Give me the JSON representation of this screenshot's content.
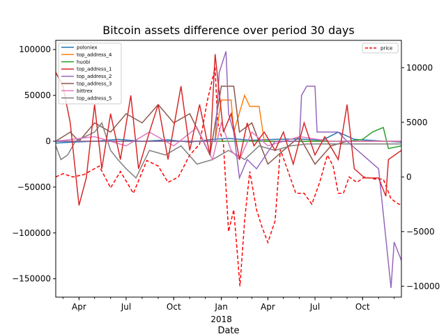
{
  "chart_data": {
    "type": "line",
    "title": "Bitcoin assets difference over period 30 days",
    "xlabel": "Date",
    "ylabel": "",
    "y2label": "",
    "x_range": [
      "2017-02-15",
      "2018-12-15"
    ],
    "ylim": [
      -170000,
      110000
    ],
    "y2lim": [
      -11000,
      12500
    ],
    "x_ticks": [
      {
        "date": "2017-04-01",
        "label": "Apr"
      },
      {
        "date": "2017-07-01",
        "label": "Jul"
      },
      {
        "date": "2017-10-01",
        "label": "Oct"
      },
      {
        "date": "2018-01-01",
        "label": "Jan",
        "sublabel": "2018"
      },
      {
        "date": "2018-04-01",
        "label": "Apr"
      },
      {
        "date": "2018-07-01",
        "label": "Jul"
      },
      {
        "date": "2018-10-01",
        "label": "Oct"
      }
    ],
    "y_ticks": [
      100000,
      50000,
      0,
      -50000,
      -100000,
      -150000
    ],
    "y2_ticks": [
      10000,
      5000,
      0,
      -5000,
      -10000
    ],
    "grid": false,
    "legend_left": {
      "placement": "top-left",
      "entries": [
        "poloniex",
        "top_address_4",
        "huobi",
        "top_address_1",
        "top_address_2",
        "top_address_3",
        "bittrex",
        "top_address_5"
      ]
    },
    "legend_right": {
      "placement": "top-right",
      "entries": [
        "price"
      ]
    },
    "series": [
      {
        "name": "poloniex",
        "axis": "left",
        "color": "#1f77b4",
        "points": [
          [
            "2017-02-15",
            -2000
          ],
          [
            "2017-03-20",
            -1000
          ],
          [
            "2017-05-01",
            0
          ],
          [
            "2017-06-15",
            2000
          ],
          [
            "2017-08-01",
            0
          ],
          [
            "2017-09-20",
            1500
          ],
          [
            "2017-11-01",
            -1000
          ],
          [
            "2017-12-15",
            2000
          ],
          [
            "2018-01-15",
            3000
          ],
          [
            "2018-03-01",
            1000
          ],
          [
            "2018-04-15",
            2000
          ],
          [
            "2018-06-01",
            2500
          ],
          [
            "2018-07-15",
            1000
          ],
          [
            "2018-08-15",
            10000
          ],
          [
            "2018-09-15",
            2000
          ],
          [
            "2018-10-15",
            1000
          ],
          [
            "2018-11-15",
            0
          ],
          [
            "2018-12-15",
            -1000
          ]
        ]
      },
      {
        "name": "top_address_4",
        "axis": "left",
        "color": "#ff7f0e",
        "points": [
          [
            "2017-02-15",
            0
          ],
          [
            "2017-12-20",
            0
          ],
          [
            "2018-01-01",
            45000
          ],
          [
            "2018-01-20",
            45000
          ],
          [
            "2018-01-25",
            10000
          ],
          [
            "2018-02-15",
            50000
          ],
          [
            "2018-02-25",
            38000
          ],
          [
            "2018-03-15",
            38000
          ],
          [
            "2018-03-25",
            0
          ],
          [
            "2018-12-15",
            0
          ]
        ]
      },
      {
        "name": "huobi",
        "axis": "left",
        "color": "#2ca02c",
        "points": [
          [
            "2017-02-15",
            0
          ],
          [
            "2018-09-01",
            0
          ],
          [
            "2018-10-01",
            2000
          ],
          [
            "2018-10-20",
            10000
          ],
          [
            "2018-11-10",
            15000
          ],
          [
            "2018-11-20",
            -8000
          ],
          [
            "2018-12-15",
            -5000
          ]
        ]
      },
      {
        "name": "top_address_1",
        "axis": "left",
        "color": "#d62728",
        "points": [
          [
            "2017-02-15",
            75000
          ],
          [
            "2017-03-01",
            60000
          ],
          [
            "2017-03-15",
            20000
          ],
          [
            "2017-04-01",
            -70000
          ],
          [
            "2017-04-15",
            -40000
          ],
          [
            "2017-05-01",
            40000
          ],
          [
            "2017-05-15",
            -30000
          ],
          [
            "2017-06-01",
            30000
          ],
          [
            "2017-06-20",
            -20000
          ],
          [
            "2017-07-10",
            50000
          ],
          [
            "2017-07-25",
            -30000
          ],
          [
            "2017-08-15",
            10000
          ],
          [
            "2017-09-01",
            40000
          ],
          [
            "2017-09-20",
            -20000
          ],
          [
            "2017-10-15",
            60000
          ],
          [
            "2017-11-01",
            -10000
          ],
          [
            "2017-11-20",
            40000
          ],
          [
            "2017-12-10",
            -15000
          ],
          [
            "2017-12-20",
            95000
          ],
          [
            "2018-01-05",
            10000
          ],
          [
            "2018-01-20",
            30000
          ],
          [
            "2018-02-05",
            -20000
          ],
          [
            "2018-02-20",
            20000
          ],
          [
            "2018-03-05",
            -5000
          ],
          [
            "2018-03-25",
            10000
          ],
          [
            "2018-04-15",
            -10000
          ],
          [
            "2018-05-01",
            10000
          ],
          [
            "2018-05-20",
            -25000
          ],
          [
            "2018-06-10",
            20000
          ],
          [
            "2018-07-01",
            -15000
          ],
          [
            "2018-07-20",
            5000
          ],
          [
            "2018-08-15",
            -20000
          ],
          [
            "2018-09-01",
            40000
          ],
          [
            "2018-09-15",
            -30000
          ],
          [
            "2018-10-05",
            -40000
          ],
          [
            "2018-11-01",
            -40000
          ],
          [
            "2018-11-15",
            -60000
          ],
          [
            "2018-11-20",
            -20000
          ],
          [
            "2018-12-15",
            -10000
          ]
        ]
      },
      {
        "name": "top_address_2",
        "axis": "left",
        "color": "#9467bd",
        "points": [
          [
            "2017-02-15",
            0
          ],
          [
            "2017-12-20",
            0
          ],
          [
            "2017-12-28",
            75000
          ],
          [
            "2018-01-10",
            98000
          ],
          [
            "2018-01-15",
            30000
          ],
          [
            "2018-01-25",
            10000
          ],
          [
            "2018-02-05",
            -40000
          ],
          [
            "2018-02-20",
            -20000
          ],
          [
            "2018-03-10",
            -30000
          ],
          [
            "2018-04-15",
            0
          ],
          [
            "2018-06-01",
            0
          ],
          [
            "2018-06-05",
            50000
          ],
          [
            "2018-06-15",
            60000
          ],
          [
            "2018-07-01",
            60000
          ],
          [
            "2018-07-05",
            10000
          ],
          [
            "2018-08-01",
            10000
          ],
          [
            "2018-08-15",
            10000
          ],
          [
            "2018-09-01",
            0
          ],
          [
            "2018-11-01",
            -30000
          ],
          [
            "2018-11-25",
            -160000
          ],
          [
            "2018-12-01",
            -110000
          ],
          [
            "2018-12-15",
            -130000
          ]
        ]
      },
      {
        "name": "top_address_3",
        "axis": "left",
        "color": "#8c564b",
        "points": [
          [
            "2017-02-15",
            0
          ],
          [
            "2017-03-15",
            10000
          ],
          [
            "2017-04-01",
            0
          ],
          [
            "2017-05-01",
            20000
          ],
          [
            "2017-06-01",
            10000
          ],
          [
            "2017-07-01",
            30000
          ],
          [
            "2017-08-01",
            20000
          ],
          [
            "2017-09-01",
            40000
          ],
          [
            "2017-10-01",
            20000
          ],
          [
            "2017-11-01",
            30000
          ],
          [
            "2017-12-10",
            -15000
          ],
          [
            "2018-01-01",
            60000
          ],
          [
            "2018-01-25",
            60000
          ],
          [
            "2018-02-05",
            10000
          ],
          [
            "2018-03-01",
            20000
          ],
          [
            "2018-04-01",
            -25000
          ],
          [
            "2018-05-01",
            -10000
          ],
          [
            "2018-06-01",
            5000
          ],
          [
            "2018-07-01",
            -25000
          ],
          [
            "2018-08-01",
            -5000
          ],
          [
            "2018-09-01",
            0
          ],
          [
            "2018-12-15",
            0
          ]
        ]
      },
      {
        "name": "bittrex",
        "axis": "left",
        "color": "#e377c2",
        "points": [
          [
            "2017-02-15",
            0
          ],
          [
            "2017-05-01",
            5000
          ],
          [
            "2017-07-01",
            -5000
          ],
          [
            "2017-08-15",
            10000
          ],
          [
            "2017-10-01",
            -5000
          ],
          [
            "2017-11-15",
            15000
          ],
          [
            "2017-12-15",
            -20000
          ],
          [
            "2018-01-01",
            20000
          ],
          [
            "2018-01-20",
            -10000
          ],
          [
            "2018-02-05",
            -20000
          ],
          [
            "2018-03-01",
            10000
          ],
          [
            "2018-04-01",
            -5000
          ],
          [
            "2018-06-01",
            5000
          ],
          [
            "2018-08-01",
            0
          ],
          [
            "2018-10-01",
            0
          ],
          [
            "2018-12-15",
            0
          ]
        ]
      },
      {
        "name": "top_address_5",
        "axis": "left",
        "color": "#7f7f7f",
        "points": [
          [
            "2017-02-15",
            -5000
          ],
          [
            "2017-02-25",
            -20000
          ],
          [
            "2017-03-10",
            -15000
          ],
          [
            "2017-03-25",
            0
          ],
          [
            "2017-05-01",
            10000
          ],
          [
            "2017-05-15",
            20000
          ],
          [
            "2017-06-01",
            -10000
          ],
          [
            "2017-06-15",
            -20000
          ],
          [
            "2017-07-01",
            -30000
          ],
          [
            "2017-07-20",
            -40000
          ],
          [
            "2017-08-15",
            -10000
          ],
          [
            "2017-09-15",
            -15000
          ],
          [
            "2017-10-15",
            -5000
          ],
          [
            "2017-11-15",
            -25000
          ],
          [
            "2017-12-15",
            -20000
          ],
          [
            "2018-01-15",
            -10000
          ],
          [
            "2018-02-15",
            -20000
          ],
          [
            "2018-03-15",
            -5000
          ],
          [
            "2018-04-15",
            -10000
          ],
          [
            "2018-05-15",
            -5000
          ],
          [
            "2018-06-15",
            -3000
          ],
          [
            "2018-08-15",
            -3000
          ],
          [
            "2018-10-15",
            -3000
          ],
          [
            "2018-12-15",
            -3000
          ]
        ]
      },
      {
        "name": "price",
        "axis": "right",
        "color": "#ff0000",
        "dashed": true,
        "points": [
          [
            "2017-02-15",
            0
          ],
          [
            "2017-03-01",
            300
          ],
          [
            "2017-03-20",
            0
          ],
          [
            "2017-04-10",
            200
          ],
          [
            "2017-05-10",
            1000
          ],
          [
            "2017-06-01",
            -1000
          ],
          [
            "2017-06-20",
            500
          ],
          [
            "2017-07-15",
            -1500
          ],
          [
            "2017-08-10",
            1500
          ],
          [
            "2017-09-01",
            1000
          ],
          [
            "2017-09-20",
            -500
          ],
          [
            "2017-10-10",
            0
          ],
          [
            "2017-11-01",
            2000
          ],
          [
            "2017-11-20",
            3000
          ],
          [
            "2017-12-05",
            7000
          ],
          [
            "2017-12-15",
            9000
          ],
          [
            "2017-12-20",
            10000
          ],
          [
            "2017-12-25",
            5000
          ],
          [
            "2018-01-05",
            3000
          ],
          [
            "2018-01-15",
            -5000
          ],
          [
            "2018-01-25",
            -3000
          ],
          [
            "2018-02-01",
            -7000
          ],
          [
            "2018-02-06",
            -10000
          ],
          [
            "2018-02-15",
            -4000
          ],
          [
            "2018-02-25",
            500
          ],
          [
            "2018-03-10",
            -3000
          ],
          [
            "2018-03-20",
            -4500
          ],
          [
            "2018-04-01",
            -6000
          ],
          [
            "2018-04-15",
            -4000
          ],
          [
            "2018-04-25",
            2500
          ],
          [
            "2018-05-10",
            500
          ],
          [
            "2018-05-25",
            -1500
          ],
          [
            "2018-06-10",
            -1500
          ],
          [
            "2018-06-25",
            -2500
          ],
          [
            "2018-07-10",
            -500
          ],
          [
            "2018-07-25",
            2000
          ],
          [
            "2018-08-05",
            1000
          ],
          [
            "2018-08-15",
            -1500
          ],
          [
            "2018-08-25",
            -1500
          ],
          [
            "2018-09-05",
            0
          ],
          [
            "2018-09-20",
            -500
          ],
          [
            "2018-10-05",
            0
          ],
          [
            "2018-10-25",
            -200
          ],
          [
            "2018-11-10",
            -200
          ],
          [
            "2018-11-25",
            -2000
          ],
          [
            "2018-12-10",
            -2500
          ],
          [
            "2018-12-15",
            -2500
          ]
        ]
      }
    ]
  }
}
